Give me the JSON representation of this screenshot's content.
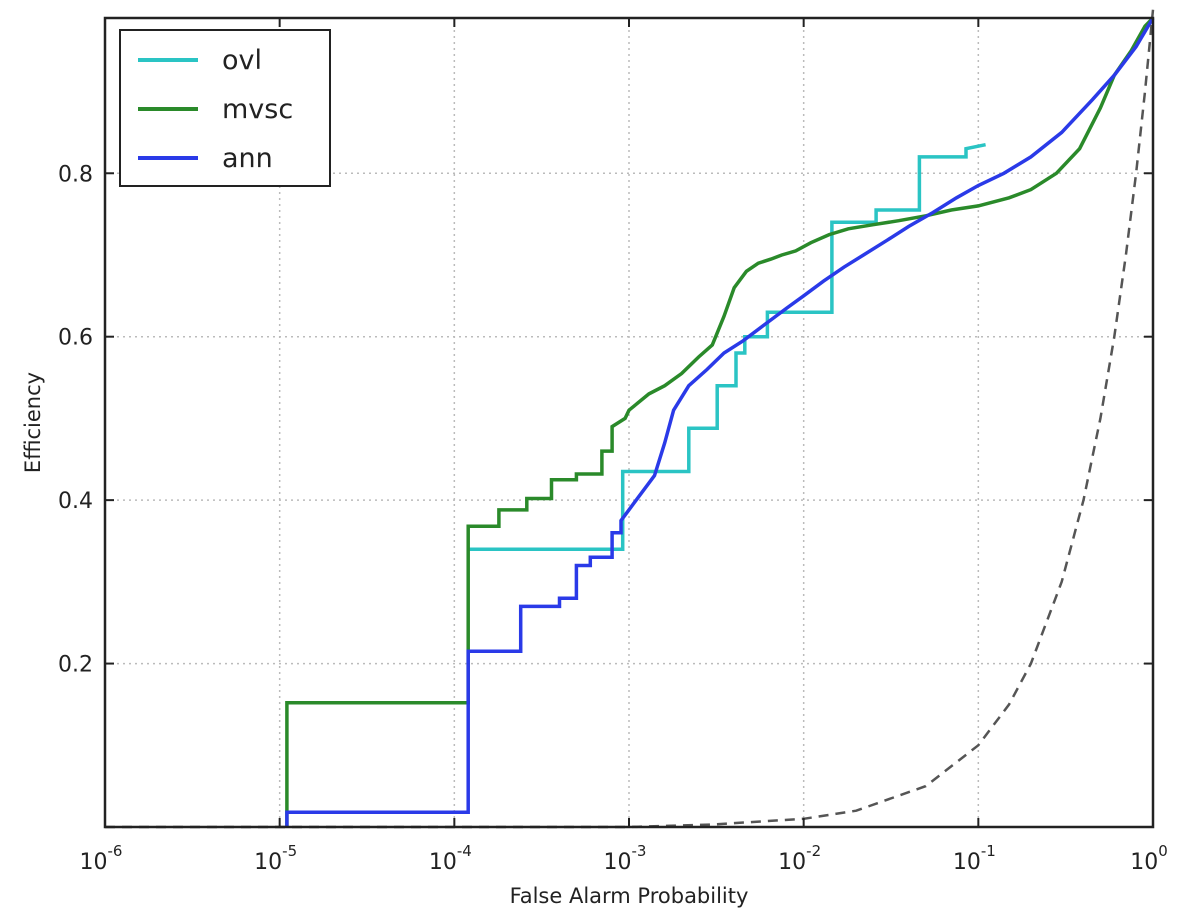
{
  "chart_data": {
    "type": "line",
    "title": "",
    "xlabel": "False Alarm Probability",
    "ylabel": "Efficiency",
    "xscale": "log",
    "xlim": [
      1e-06,
      1
    ],
    "ylim": [
      0,
      0.99
    ],
    "grid": true,
    "legend_position": "top-left",
    "x_ticks": [
      {
        "value": 1e-06,
        "base": "10",
        "exp": "-6"
      },
      {
        "value": 1e-05,
        "base": "10",
        "exp": "-5"
      },
      {
        "value": 0.0001,
        "base": "10",
        "exp": "-4"
      },
      {
        "value": 0.001,
        "base": "10",
        "exp": "-3"
      },
      {
        "value": 0.01,
        "base": "10",
        "exp": "-2"
      },
      {
        "value": 0.1,
        "base": "10",
        "exp": "-1"
      },
      {
        "value": 1,
        "base": "10",
        "exp": "0"
      }
    ],
    "y_ticks": [
      {
        "value": 0.2,
        "label": "0.2"
      },
      {
        "value": 0.4,
        "label": "0.4"
      },
      {
        "value": 0.6,
        "label": "0.6"
      },
      {
        "value": 0.8,
        "label": "0.8"
      }
    ],
    "series": [
      {
        "name": "ovl",
        "color": "#2ac4c4",
        "style": "step",
        "x": [
          0.00012,
          0.00092,
          0.00092,
          0.0022,
          0.0022,
          0.0032,
          0.0032,
          0.0041,
          0.0041,
          0.0046,
          0.0046,
          0.0062,
          0.0062,
          0.0145,
          0.0145,
          0.026,
          0.026,
          0.046,
          0.046,
          0.085,
          0.085,
          0.11
        ],
        "y": [
          0.34,
          0.34,
          0.435,
          0.435,
          0.488,
          0.488,
          0.54,
          0.54,
          0.58,
          0.58,
          0.6,
          0.6,
          0.63,
          0.63,
          0.74,
          0.74,
          0.755,
          0.755,
          0.82,
          0.82,
          0.83,
          0.835
        ]
      },
      {
        "name": "mvsc",
        "color": "#2a8a2a",
        "style": "step",
        "x": [
          1.1e-05,
          1.1e-05,
          0.00012,
          0.00012,
          0.00018,
          0.00018,
          0.00026,
          0.00026,
          0.00036,
          0.00036,
          0.0005,
          0.0005,
          0.0007,
          0.0007,
          0.0008,
          0.0008,
          0.00095,
          0.001,
          0.0013,
          0.0016,
          0.002,
          0.0025,
          0.003,
          0.0035,
          0.004,
          0.0047,
          0.0055,
          0.0065,
          0.0075,
          0.009,
          0.011,
          0.014,
          0.018,
          0.025,
          0.035,
          0.05,
          0.07,
          0.1,
          0.15,
          0.2,
          0.28,
          0.38,
          0.5,
          0.6,
          0.75,
          0.9,
          1.0
        ],
        "y": [
          0.0,
          0.152,
          0.152,
          0.368,
          0.368,
          0.388,
          0.388,
          0.402,
          0.402,
          0.425,
          0.425,
          0.432,
          0.432,
          0.46,
          0.46,
          0.49,
          0.5,
          0.51,
          0.53,
          0.54,
          0.555,
          0.575,
          0.59,
          0.625,
          0.66,
          0.68,
          0.69,
          0.695,
          0.7,
          0.705,
          0.715,
          0.725,
          0.732,
          0.737,
          0.742,
          0.748,
          0.755,
          0.76,
          0.77,
          0.78,
          0.8,
          0.83,
          0.88,
          0.92,
          0.95,
          0.98,
          0.99
        ]
      },
      {
        "name": "ann",
        "color": "#2a3ae8",
        "style": "step",
        "x": [
          1.1e-05,
          1.1e-05,
          0.00012,
          0.00012,
          0.00016,
          0.00016,
          0.00024,
          0.00024,
          0.0004,
          0.0004,
          0.0005,
          0.0005,
          0.0006,
          0.0006,
          0.0008,
          0.0008,
          0.0009,
          0.0009,
          0.0011,
          0.0014,
          0.0016,
          0.0018,
          0.0022,
          0.0028,
          0.0035,
          0.0045,
          0.006,
          0.008,
          0.01,
          0.013,
          0.017,
          0.022,
          0.03,
          0.04,
          0.055,
          0.075,
          0.1,
          0.14,
          0.2,
          0.3,
          0.45,
          0.6,
          0.8,
          1.0
        ],
        "y": [
          0.0,
          0.018,
          0.018,
          0.215,
          0.215,
          0.215,
          0.215,
          0.27,
          0.27,
          0.28,
          0.28,
          0.32,
          0.32,
          0.33,
          0.33,
          0.36,
          0.36,
          0.375,
          0.4,
          0.43,
          0.47,
          0.51,
          0.54,
          0.56,
          0.58,
          0.595,
          0.615,
          0.635,
          0.65,
          0.668,
          0.685,
          0.7,
          0.718,
          0.735,
          0.752,
          0.77,
          0.785,
          0.8,
          0.82,
          0.85,
          0.89,
          0.92,
          0.955,
          0.99
        ]
      },
      {
        "name": "",
        "color": "#555555",
        "style": "dashed",
        "x": [
          1e-06,
          1e-05,
          0.0001,
          0.001,
          0.003,
          0.01,
          0.02,
          0.05,
          0.1,
          0.15,
          0.2,
          0.3,
          0.4,
          0.5,
          0.6,
          0.7,
          0.8,
          0.9,
          1.0
        ],
        "y": [
          0.0,
          0.0,
          0.0,
          0.0,
          0.003,
          0.01,
          0.02,
          0.05,
          0.1,
          0.15,
          0.2,
          0.3,
          0.4,
          0.5,
          0.6,
          0.7,
          0.8,
          0.9,
          1.0
        ]
      }
    ],
    "legend": [
      {
        "label": "ovl",
        "color": "#2ac4c4"
      },
      {
        "label": "mvsc",
        "color": "#2a8a2a"
      },
      {
        "label": "ann",
        "color": "#2a3ae8"
      }
    ]
  },
  "header_title": {
    "text": "",
    "color": "#e8261b"
  }
}
